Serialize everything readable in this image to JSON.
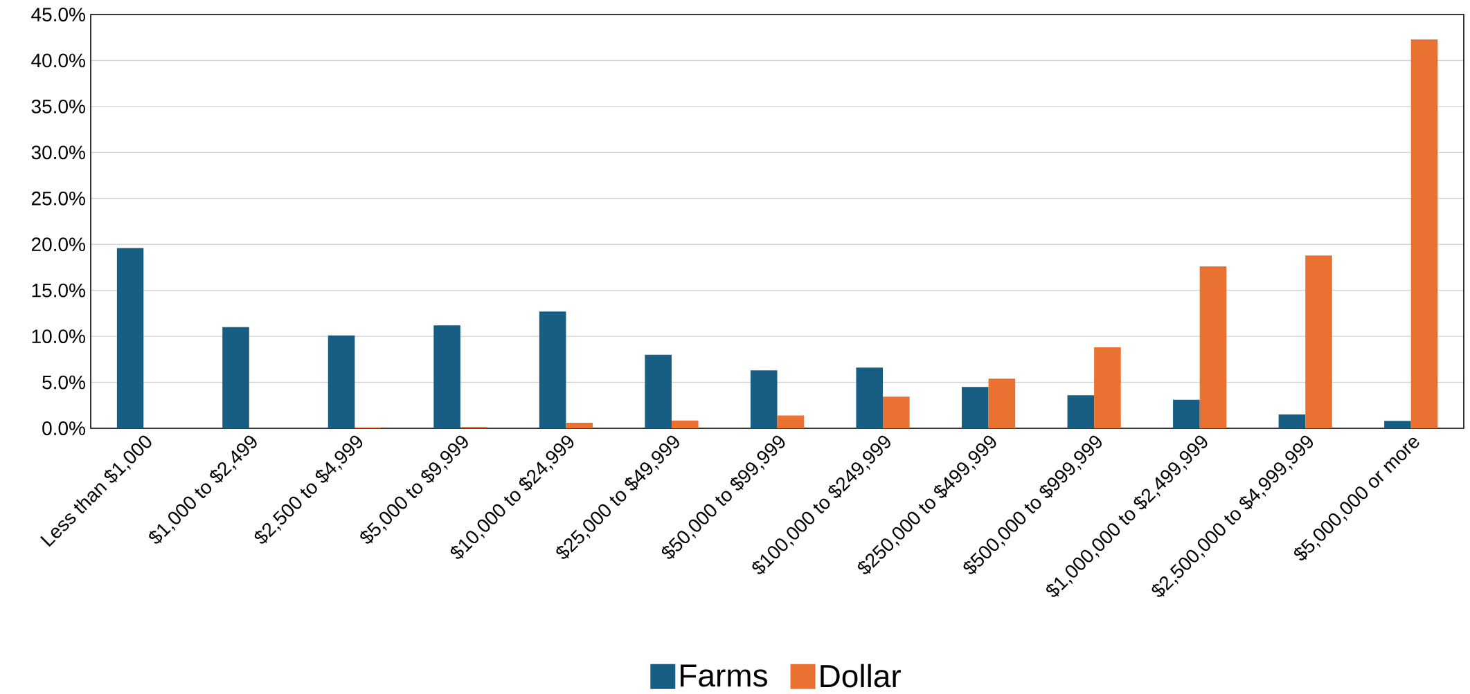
{
  "chart_data": {
    "type": "bar",
    "categories": [
      "Less than $1,000",
      "$1,000 to $2,499",
      "$2,500 to $4,999",
      "$5,000 to $9,999",
      "$10,000 to $24,999",
      "$25,000 to $49,999",
      "$50,000 to $99,999",
      "$100,000 to $249,999",
      "$250,000 to $499,999",
      "$500,000 to $999,999",
      "$1,000,000 to $2,499,999",
      "$2,500,000 to $4,999,999",
      "$5,000,000 or more"
    ],
    "series": [
      {
        "name": "Farms",
        "color": "#175e82",
        "values": [
          19.6,
          11.0,
          10.1,
          11.2,
          12.7,
          8.0,
          6.3,
          6.6,
          4.5,
          3.6,
          3.1,
          1.5,
          0.8
        ]
      },
      {
        "name": "Dollar",
        "color": "#e97132",
        "values": [
          0.0,
          0.0,
          0.1,
          0.15,
          0.6,
          0.85,
          1.4,
          3.45,
          5.4,
          8.8,
          17.6,
          18.8,
          42.3
        ]
      }
    ],
    "ylim": [
      0,
      45
    ],
    "yticks": [
      {
        "value": 0,
        "label": "0.0%"
      },
      {
        "value": 5,
        "label": "5.0%"
      },
      {
        "value": 10,
        "label": "10.0%"
      },
      {
        "value": 15,
        "label": "15.0%"
      },
      {
        "value": 20,
        "label": "20.0%"
      },
      {
        "value": 25,
        "label": "25.0%"
      },
      {
        "value": 30,
        "label": "30.0%"
      },
      {
        "value": 35,
        "label": "35.0%"
      },
      {
        "value": 40,
        "label": "40.0%"
      },
      {
        "value": 45,
        "label": "45.0%"
      }
    ],
    "grid": "y",
    "legend": "bottom"
  }
}
